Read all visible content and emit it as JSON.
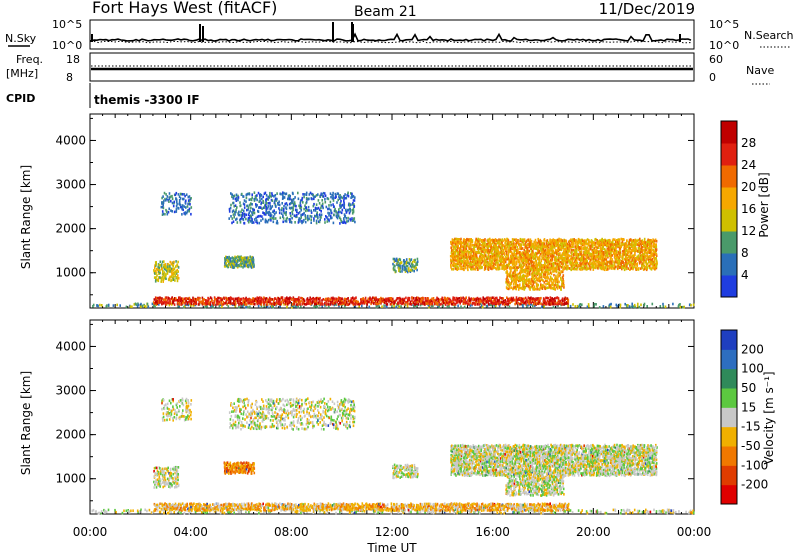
{
  "header": {
    "radar": "Fort Hays West (fitACF)",
    "beam": "Beam 21",
    "date": "11/Dec/2019"
  },
  "noise_panel": {
    "left_label": "N.Sky",
    "right_label": "N.Search",
    "left_ticks": [
      "10^5",
      "10^0"
    ],
    "right_ticks": [
      "10^5",
      "10^0"
    ]
  },
  "freq_panel": {
    "left_label_1": "Freq.",
    "left_label_2": "[MHz]",
    "right_label": "Nave",
    "left_ticks": [
      "18",
      "8"
    ],
    "right_ticks": [
      "60",
      "0"
    ]
  },
  "cpid_panel": {
    "label": "CPID",
    "value": "themis -3300 IF"
  },
  "chart_data": [
    {
      "type": "heatmap",
      "name": "power",
      "ylabel": "Slant Range [km]",
      "xlabel": "",
      "yticks": [
        "1000",
        "2000",
        "3000",
        "4000"
      ],
      "xticks": [],
      "ylim": [
        200,
        4600
      ],
      "xlim_hours": [
        0,
        24
      ],
      "colorbar": {
        "label": "Power [dB]",
        "ticks": [
          "4",
          "8",
          "12",
          "16",
          "20",
          "24",
          "28"
        ],
        "range": [
          0,
          32
        ],
        "colors": [
          "#1f3de0",
          "#2a6fb8",
          "#4a9a6a",
          "#cfc000",
          "#f6a800",
          "#f06a00",
          "#e02010",
          "#c00000"
        ]
      },
      "echo_regions": [
        {
          "t0": 0.0,
          "t1": 24.0,
          "r0": 200,
          "r1": 280,
          "level": 2,
          "density": 0.25
        },
        {
          "t0": 2.5,
          "t1": 19.0,
          "r0": 260,
          "r1": 420,
          "level": 6,
          "density": 0.7
        },
        {
          "t0": 2.5,
          "t1": 3.5,
          "r0": 780,
          "r1": 1250,
          "level": 3,
          "density": 0.55
        },
        {
          "t0": 5.3,
          "t1": 6.5,
          "r0": 1100,
          "r1": 1350,
          "level": 2,
          "density": 0.85
        },
        {
          "t0": 2.8,
          "t1": 4.0,
          "r0": 2300,
          "r1": 2800,
          "level": 1,
          "density": 0.3
        },
        {
          "t0": 5.5,
          "t1": 10.5,
          "r0": 2100,
          "r1": 2800,
          "level": 1,
          "density": 0.3
        },
        {
          "t0": 12.0,
          "t1": 13.0,
          "r0": 1000,
          "r1": 1300,
          "level": 2,
          "density": 0.5
        },
        {
          "t0": 14.3,
          "t1": 22.5,
          "r0": 1050,
          "r1": 1750,
          "level": 4,
          "density": 0.75
        },
        {
          "t0": 16.5,
          "t1": 18.8,
          "r0": 600,
          "r1": 1050,
          "level": 4,
          "density": 0.6
        }
      ]
    },
    {
      "type": "heatmap",
      "name": "velocity",
      "ylabel": "Slant Range [km]",
      "xlabel": "Time UT",
      "yticks": [
        "1000",
        "2000",
        "3000",
        "4000"
      ],
      "xticks": [
        "00:00",
        "04:00",
        "08:00",
        "12:00",
        "16:00",
        "20:00",
        "00:00"
      ],
      "ylim": [
        200,
        4600
      ],
      "xlim_hours": [
        0,
        24
      ],
      "colorbar": {
        "label": "Velocity [m s⁻¹]",
        "ticks": [
          "200",
          "100",
          "50",
          "15",
          "-15",
          "-50",
          "-100",
          "-200"
        ],
        "colors": [
          "#1f3fc0",
          "#2d6ec0",
          "#2f8a5a",
          "#5cc840",
          "#c8c8c8",
          "#f0b000",
          "#f07800",
          "#e03c00",
          "#e00000"
        ]
      },
      "echo_regions": [
        {
          "t0": 0.0,
          "t1": 24.0,
          "r0": 200,
          "r1": 280,
          "level": 4,
          "density": 0.25
        },
        {
          "t0": 2.5,
          "t1": 19.0,
          "r0": 260,
          "r1": 420,
          "level": 5,
          "density": 0.7
        },
        {
          "t0": 2.5,
          "t1": 3.5,
          "r0": 780,
          "r1": 1250,
          "level": 4,
          "density": 0.55
        },
        {
          "t0": 5.3,
          "t1": 6.5,
          "r0": 1100,
          "r1": 1350,
          "level": 6,
          "density": 0.85
        },
        {
          "t0": 2.8,
          "t1": 4.0,
          "r0": 2300,
          "r1": 2800,
          "level": 4,
          "density": 0.3
        },
        {
          "t0": 5.5,
          "t1": 10.5,
          "r0": 2100,
          "r1": 2800,
          "level": 4,
          "density": 0.3
        },
        {
          "t0": 12.0,
          "t1": 13.0,
          "r0": 1000,
          "r1": 1300,
          "level": 4,
          "density": 0.5
        },
        {
          "t0": 14.3,
          "t1": 22.5,
          "r0": 1050,
          "r1": 1750,
          "level": 4,
          "density": 0.75
        },
        {
          "t0": 16.5,
          "t1": 18.8,
          "r0": 600,
          "r1": 1050,
          "level": 4,
          "density": 0.6
        }
      ]
    }
  ]
}
